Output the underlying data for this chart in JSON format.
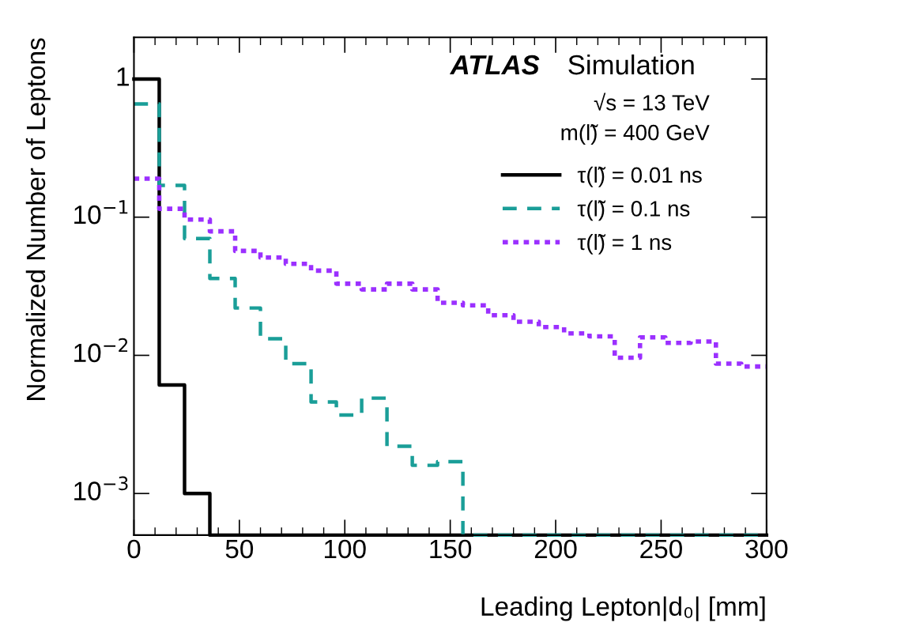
{
  "chart_data": {
    "type": "histogram",
    "xlabel": "Leading Lepton|d₀| [mm]",
    "ylabel": "Normalized Number of Leptons",
    "annotations": [
      "ATLAS",
      "Simulation",
      "√s = 13 TeV",
      "m(l̃) = 400 GeV"
    ],
    "bins": [
      0,
      12,
      24,
      36,
      48,
      60,
      72,
      84,
      96,
      108,
      120,
      132,
      144,
      156,
      168,
      180,
      192,
      204,
      216,
      228,
      240,
      252,
      264,
      276,
      288,
      300
    ],
    "series": [
      {
        "name": "τ(l̃) = 0.01 ns",
        "color": "#000000",
        "line_style": "solid",
        "values": [
          1.0,
          0.0061,
          0.001,
          null,
          null,
          null,
          null,
          null,
          null,
          null,
          null,
          null,
          null,
          null,
          null,
          null,
          null,
          null,
          null,
          null,
          null,
          null,
          null,
          null,
          null
        ]
      },
      {
        "name": "τ(l̃) = 0.1 ns",
        "color": "#1a9e98",
        "line_style": "dashed",
        "values": [
          0.66,
          0.17,
          0.07,
          0.036,
          0.022,
          0.0132,
          0.0087,
          0.0046,
          0.0037,
          0.0049,
          0.0022,
          0.0016,
          0.0017,
          null,
          null,
          null,
          null,
          null,
          null,
          null,
          null,
          null,
          null,
          null,
          null
        ]
      },
      {
        "name": "τ(l̃) = 1 ns",
        "color": "#9b30ff",
        "line_style": "dotted",
        "values": [
          0.19,
          0.115,
          0.096,
          0.079,
          0.057,
          0.051,
          0.046,
          0.041,
          0.033,
          0.03,
          0.033,
          0.03,
          0.024,
          0.023,
          0.0195,
          0.0175,
          0.016,
          0.0144,
          0.0137,
          0.0096,
          0.0135,
          0.0123,
          0.0126,
          0.0087,
          0.0083
        ]
      }
    ],
    "log": "y",
    "xlim": [
      0,
      300
    ],
    "ylim": [
      0.0005,
      2
    ],
    "xticks": [
      0,
      50,
      100,
      150,
      200,
      250,
      300
    ],
    "yticks": [
      {
        "value": 0.001,
        "label": "10$^{−3}$"
      },
      {
        "value": 0.01,
        "label": "10$^{−2}$"
      },
      {
        "value": 0.1,
        "label": "10$^{−1}$"
      },
      1
    ],
    "grid": false,
    "legend": "top right"
  }
}
